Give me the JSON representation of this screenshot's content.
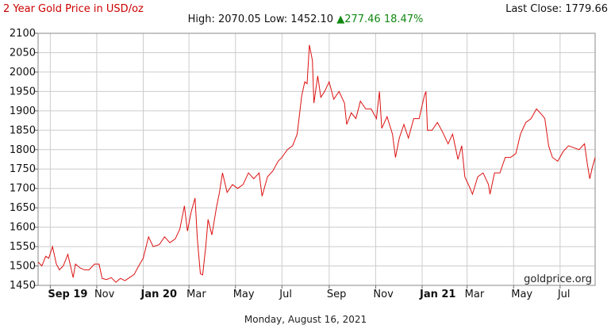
{
  "header": {
    "title": "2 Year Gold Price in USD/oz",
    "last_close_label": "Last Close: 1779.66",
    "stats_prefix": "High: 2070.05 Low: 1452.10",
    "stats_change": "▲277.46 18.47%"
  },
  "footer": {
    "date": "Monday, August 16, 2021",
    "watermark": "goldprice.org"
  },
  "colors": {
    "title": "#cc0000",
    "line": "#dd1111",
    "up": "#118811",
    "grid": "#cccccc",
    "axis": "#666666",
    "text": "#111111"
  },
  "chart_data": {
    "type": "line",
    "title": "2 Year Gold Price in USD/oz",
    "xlabel": "",
    "ylabel": "",
    "ylim": [
      1450,
      2100
    ],
    "yticks": [
      1450,
      1500,
      1550,
      1600,
      1650,
      1700,
      1750,
      1800,
      1850,
      1900,
      1950,
      2000,
      2050,
      2100
    ],
    "xlim": [
      "2019-08-16",
      "2021-08-16"
    ],
    "xticks": [
      {
        "label": "Sep 19",
        "date": "2019-09-01",
        "bold": true
      },
      {
        "label": "Nov",
        "date": "2019-11-01",
        "bold": false
      },
      {
        "label": "Jan 20",
        "date": "2020-01-01",
        "bold": true
      },
      {
        "label": "Mar",
        "date": "2020-03-01",
        "bold": false
      },
      {
        "label": "May",
        "date": "2020-05-01",
        "bold": false
      },
      {
        "label": "Jul",
        "date": "2020-07-01",
        "bold": false
      },
      {
        "label": "Sep",
        "date": "2020-09-01",
        "bold": false
      },
      {
        "label": "Nov",
        "date": "2020-11-01",
        "bold": false
      },
      {
        "label": "Jan 21",
        "date": "2021-01-01",
        "bold": true
      },
      {
        "label": "Mar",
        "date": "2021-03-01",
        "bold": false
      },
      {
        "label": "May",
        "date": "2021-05-01",
        "bold": false
      },
      {
        "label": "Jul",
        "date": "2021-07-01",
        "bold": false
      }
    ],
    "grid": true,
    "series": [
      {
        "points": [
          [
            "2019-08-16",
            1510
          ],
          [
            "2019-08-21",
            1500
          ],
          [
            "2019-08-26",
            1525
          ],
          [
            "2019-08-30",
            1520
          ],
          [
            "2019-09-04",
            1550
          ],
          [
            "2019-09-09",
            1505
          ],
          [
            "2019-09-13",
            1490
          ],
          [
            "2019-09-18",
            1500
          ],
          [
            "2019-09-24",
            1530
          ],
          [
            "2019-10-01",
            1470
          ],
          [
            "2019-10-04",
            1505
          ],
          [
            "2019-10-10",
            1495
          ],
          [
            "2019-10-16",
            1490
          ],
          [
            "2019-10-22",
            1490
          ],
          [
            "2019-10-29",
            1505
          ],
          [
            "2019-11-04",
            1505
          ],
          [
            "2019-11-08",
            1468
          ],
          [
            "2019-11-14",
            1465
          ],
          [
            "2019-11-20",
            1470
          ],
          [
            "2019-11-26",
            1458
          ],
          [
            "2019-12-02",
            1468
          ],
          [
            "2019-12-08",
            1462
          ],
          [
            "2019-12-14",
            1470
          ],
          [
            "2019-12-20",
            1478
          ],
          [
            "2019-12-26",
            1500
          ],
          [
            "2020-01-01",
            1520
          ],
          [
            "2020-01-08",
            1575
          ],
          [
            "2020-01-14",
            1550
          ],
          [
            "2020-01-22",
            1555
          ],
          [
            "2020-01-29",
            1575
          ],
          [
            "2020-02-05",
            1560
          ],
          [
            "2020-02-12",
            1570
          ],
          [
            "2020-02-18",
            1595
          ],
          [
            "2020-02-24",
            1655
          ],
          [
            "2020-02-28",
            1590
          ],
          [
            "2020-03-04",
            1640
          ],
          [
            "2020-03-09",
            1675
          ],
          [
            "2020-03-12",
            1570
          ],
          [
            "2020-03-16",
            1480
          ],
          [
            "2020-03-19",
            1477
          ],
          [
            "2020-03-23",
            1550
          ],
          [
            "2020-03-26",
            1620
          ],
          [
            "2020-03-31",
            1580
          ],
          [
            "2020-04-06",
            1650
          ],
          [
            "2020-04-10",
            1690
          ],
          [
            "2020-04-14",
            1740
          ],
          [
            "2020-04-20",
            1690
          ],
          [
            "2020-04-27",
            1710
          ],
          [
            "2020-05-04",
            1700
          ],
          [
            "2020-05-11",
            1710
          ],
          [
            "2020-05-18",
            1740
          ],
          [
            "2020-05-25",
            1725
          ],
          [
            "2020-06-01",
            1740
          ],
          [
            "2020-06-05",
            1680
          ],
          [
            "2020-06-12",
            1730
          ],
          [
            "2020-06-19",
            1745
          ],
          [
            "2020-06-26",
            1770
          ],
          [
            "2020-07-01",
            1780
          ],
          [
            "2020-07-08",
            1800
          ],
          [
            "2020-07-15",
            1810
          ],
          [
            "2020-07-21",
            1840
          ],
          [
            "2020-07-27",
            1940
          ],
          [
            "2020-07-31",
            1975
          ],
          [
            "2020-08-03",
            1970
          ],
          [
            "2020-08-06",
            2070
          ],
          [
            "2020-08-10",
            2030
          ],
          [
            "2020-08-12",
            1920
          ],
          [
            "2020-08-17",
            1990
          ],
          [
            "2020-08-21",
            1935
          ],
          [
            "2020-08-26",
            1950
          ],
          [
            "2020-09-01",
            1975
          ],
          [
            "2020-09-07",
            1930
          ],
          [
            "2020-09-14",
            1950
          ],
          [
            "2020-09-21",
            1920
          ],
          [
            "2020-09-24",
            1865
          ],
          [
            "2020-09-30",
            1895
          ],
          [
            "2020-10-06",
            1880
          ],
          [
            "2020-10-12",
            1925
          ],
          [
            "2020-10-19",
            1905
          ],
          [
            "2020-10-26",
            1905
          ],
          [
            "2020-11-02",
            1880
          ],
          [
            "2020-11-06",
            1950
          ],
          [
            "2020-11-09",
            1855
          ],
          [
            "2020-11-16",
            1885
          ],
          [
            "2020-11-23",
            1840
          ],
          [
            "2020-11-27",
            1780
          ],
          [
            "2020-12-02",
            1830
          ],
          [
            "2020-12-08",
            1865
          ],
          [
            "2020-12-14",
            1830
          ],
          [
            "2020-12-21",
            1880
          ],
          [
            "2020-12-28",
            1880
          ],
          [
            "2021-01-04",
            1940
          ],
          [
            "2021-01-06",
            1950
          ],
          [
            "2021-01-08",
            1850
          ],
          [
            "2021-01-14",
            1850
          ],
          [
            "2021-01-21",
            1870
          ],
          [
            "2021-01-28",
            1845
          ],
          [
            "2021-02-04",
            1815
          ],
          [
            "2021-02-10",
            1840
          ],
          [
            "2021-02-17",
            1775
          ],
          [
            "2021-02-22",
            1810
          ],
          [
            "2021-02-26",
            1730
          ],
          [
            "2021-03-05",
            1700
          ],
          [
            "2021-03-08",
            1685
          ],
          [
            "2021-03-15",
            1730
          ],
          [
            "2021-03-22",
            1740
          ],
          [
            "2021-03-29",
            1710
          ],
          [
            "2021-03-31",
            1685
          ],
          [
            "2021-04-06",
            1740
          ],
          [
            "2021-04-13",
            1740
          ],
          [
            "2021-04-20",
            1780
          ],
          [
            "2021-04-27",
            1780
          ],
          [
            "2021-05-04",
            1790
          ],
          [
            "2021-05-10",
            1840
          ],
          [
            "2021-05-17",
            1870
          ],
          [
            "2021-05-24",
            1880
          ],
          [
            "2021-05-31",
            1905
          ],
          [
            "2021-06-07",
            1890
          ],
          [
            "2021-06-11",
            1880
          ],
          [
            "2021-06-16",
            1810
          ],
          [
            "2021-06-21",
            1780
          ],
          [
            "2021-06-28",
            1770
          ],
          [
            "2021-07-05",
            1795
          ],
          [
            "2021-07-12",
            1810
          ],
          [
            "2021-07-19",
            1805
          ],
          [
            "2021-07-26",
            1800
          ],
          [
            "2021-08-02",
            1815
          ],
          [
            "2021-08-06",
            1760
          ],
          [
            "2021-08-09",
            1725
          ],
          [
            "2021-08-12",
            1752
          ],
          [
            "2021-08-16",
            1780
          ]
        ]
      }
    ]
  }
}
